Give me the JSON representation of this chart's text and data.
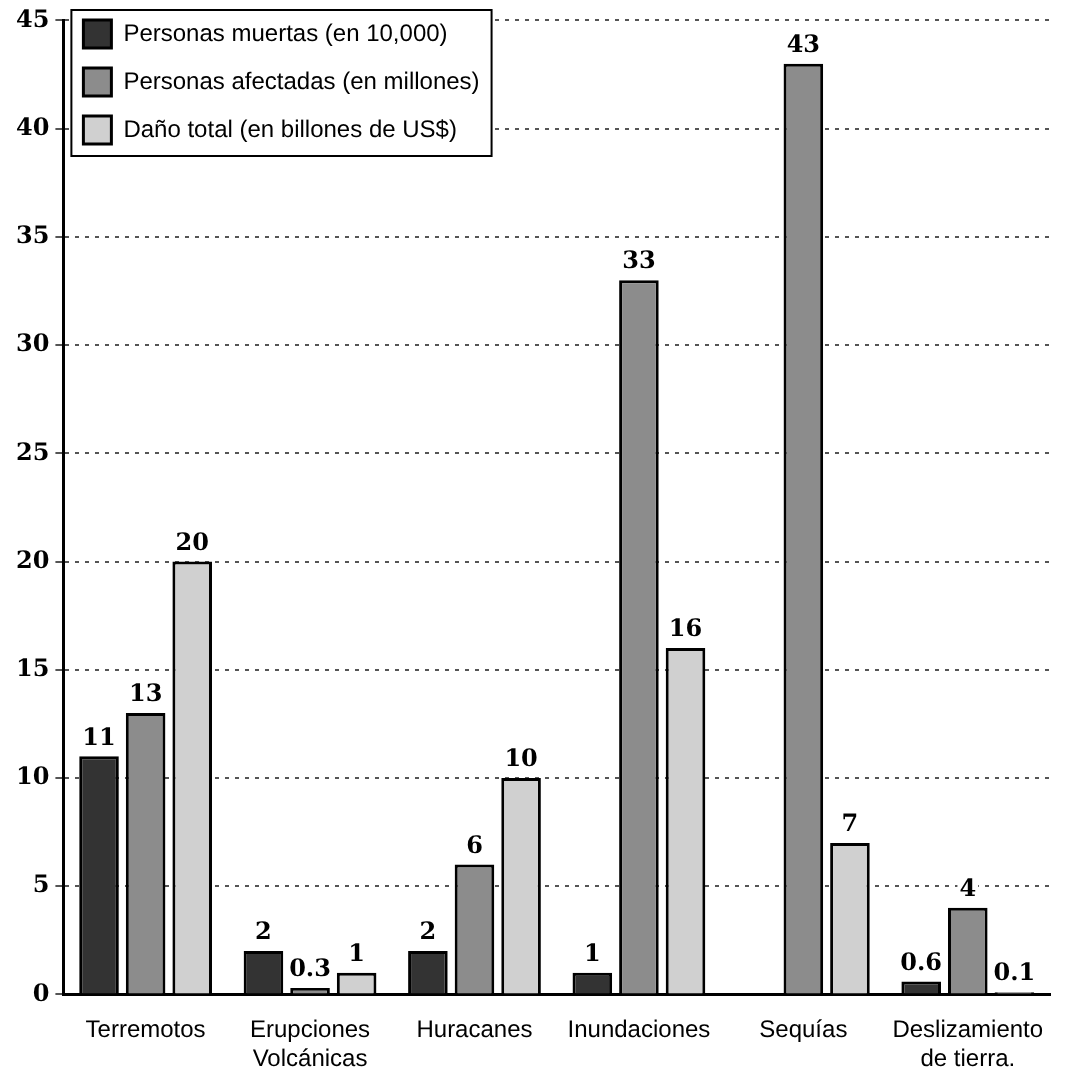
{
  "chart_data": {
    "type": "bar",
    "categories": [
      "Terremotos",
      "Erupciones Volcánicas",
      "Huracanes",
      "Inundaciones",
      "Sequías",
      "Deslizamiento de tierra."
    ],
    "series": [
      {
        "name": "Personas muertas (en 10,000)",
        "color": "#333333",
        "values": [
          11,
          2,
          2,
          1,
          null,
          0.6
        ]
      },
      {
        "name": "Personas afectadas (en millones)",
        "color": "#8c8c8c",
        "values": [
          13,
          0.3,
          6,
          33,
          43,
          4
        ]
      },
      {
        "name": "Daño total (en billones de US$)",
        "color": "#d0d0d0",
        "values": [
          20,
          1,
          10,
          16,
          7,
          0.1
        ]
      }
    ],
    "ylim": [
      0,
      45
    ],
    "yticks": [
      0,
      5,
      10,
      15,
      20,
      25,
      30,
      35,
      40,
      45
    ],
    "grid": "y",
    "legend": "top left",
    "data_labels": true
  }
}
